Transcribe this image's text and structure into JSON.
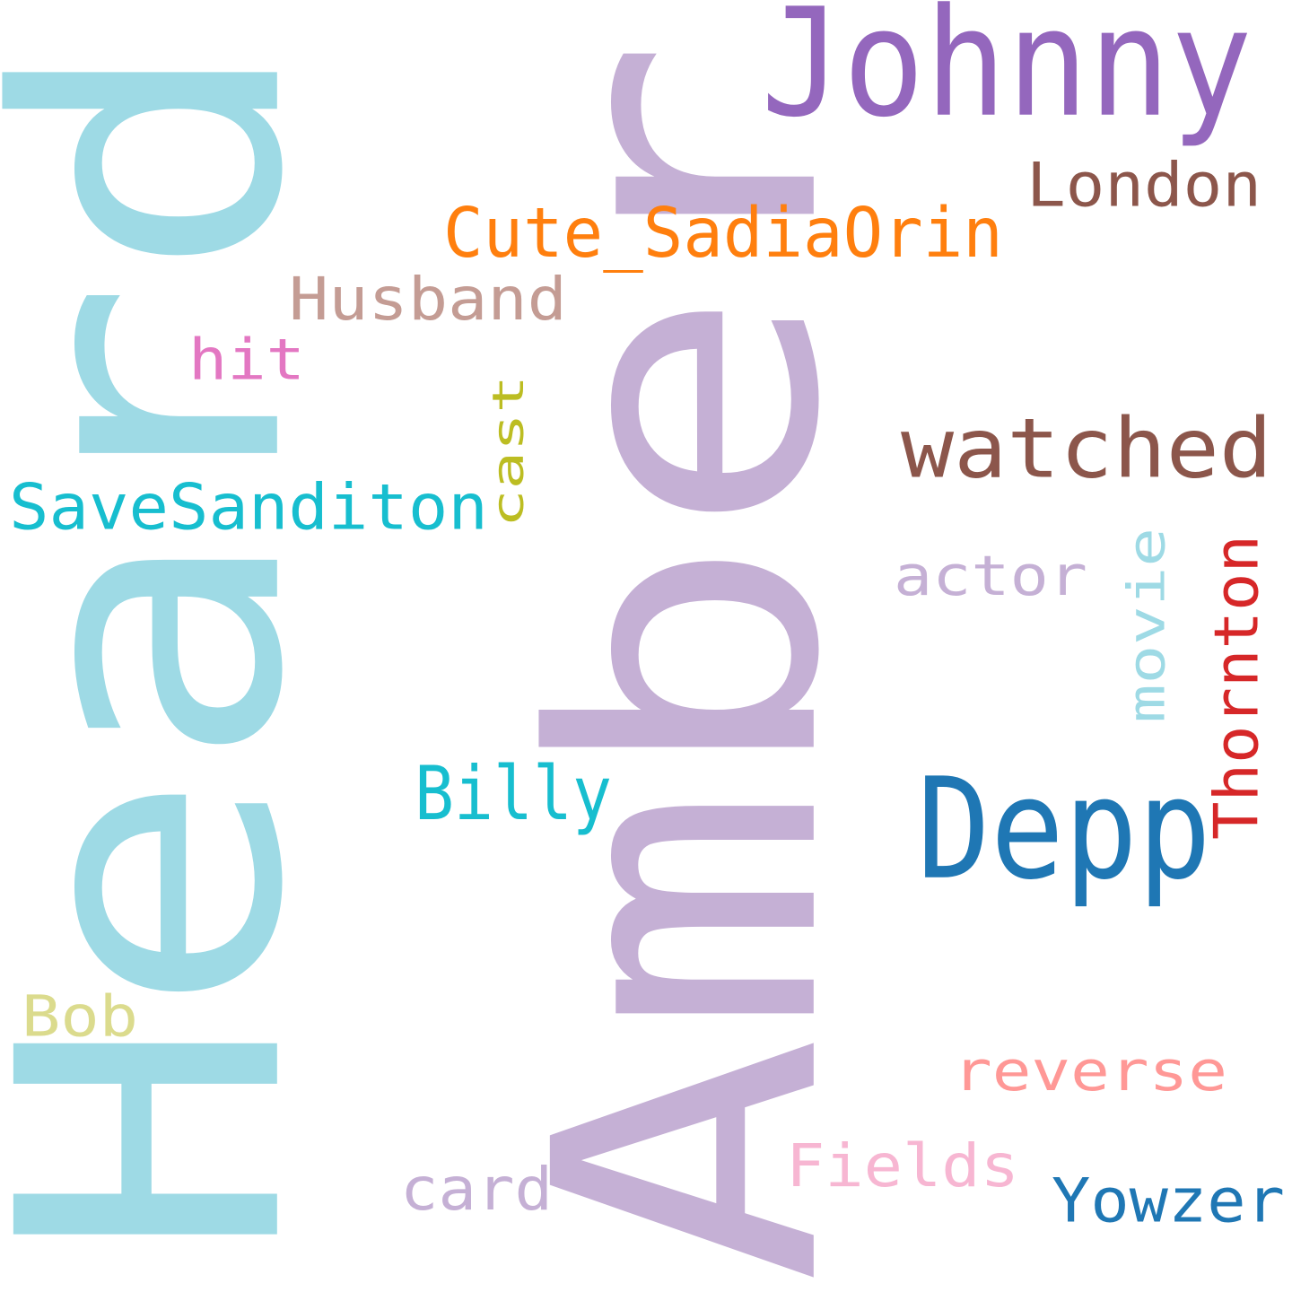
{
  "words": [
    {
      "text": "Amber",
      "color": "#c5b0d5",
      "orientation": "vertical"
    },
    {
      "text": "Heard",
      "color": "#9edae5",
      "orientation": "vertical"
    },
    {
      "text": "Johnny",
      "color": "#9467bd",
      "orientation": "horizontal"
    },
    {
      "text": "London",
      "color": "#8c564b",
      "orientation": "horizontal"
    },
    {
      "text": "Cute_SadiaOrin",
      "color": "#ff7f0e",
      "orientation": "horizontal"
    },
    {
      "text": "Husband",
      "color": "#c49c94",
      "orientation": "horizontal"
    },
    {
      "text": "hit",
      "color": "#e377c2",
      "orientation": "horizontal"
    },
    {
      "text": "cast",
      "color": "#bcbd22",
      "orientation": "vertical"
    },
    {
      "text": "watched",
      "color": "#8c564b",
      "orientation": "horizontal"
    },
    {
      "text": "SaveSanditon",
      "color": "#17becf",
      "orientation": "horizontal"
    },
    {
      "text": "actor",
      "color": "#c5b0d5",
      "orientation": "horizontal"
    },
    {
      "text": "movie",
      "color": "#9edae5",
      "orientation": "vertical"
    },
    {
      "text": "Thornton",
      "color": "#d62728",
      "orientation": "vertical"
    },
    {
      "text": "Depp",
      "color": "#1f77b4",
      "orientation": "horizontal"
    },
    {
      "text": "Billy",
      "color": "#17becf",
      "orientation": "horizontal"
    },
    {
      "text": "Bob",
      "color": "#dbdb8d",
      "orientation": "horizontal"
    },
    {
      "text": "reverse",
      "color": "#ff9896",
      "orientation": "horizontal"
    },
    {
      "text": "Fields",
      "color": "#f7b6d2",
      "orientation": "horizontal"
    },
    {
      "text": "card",
      "color": "#c5b0d5",
      "orientation": "horizontal"
    },
    {
      "text": "Yowzer",
      "color": "#1f77b4",
      "orientation": "horizontal"
    }
  ]
}
